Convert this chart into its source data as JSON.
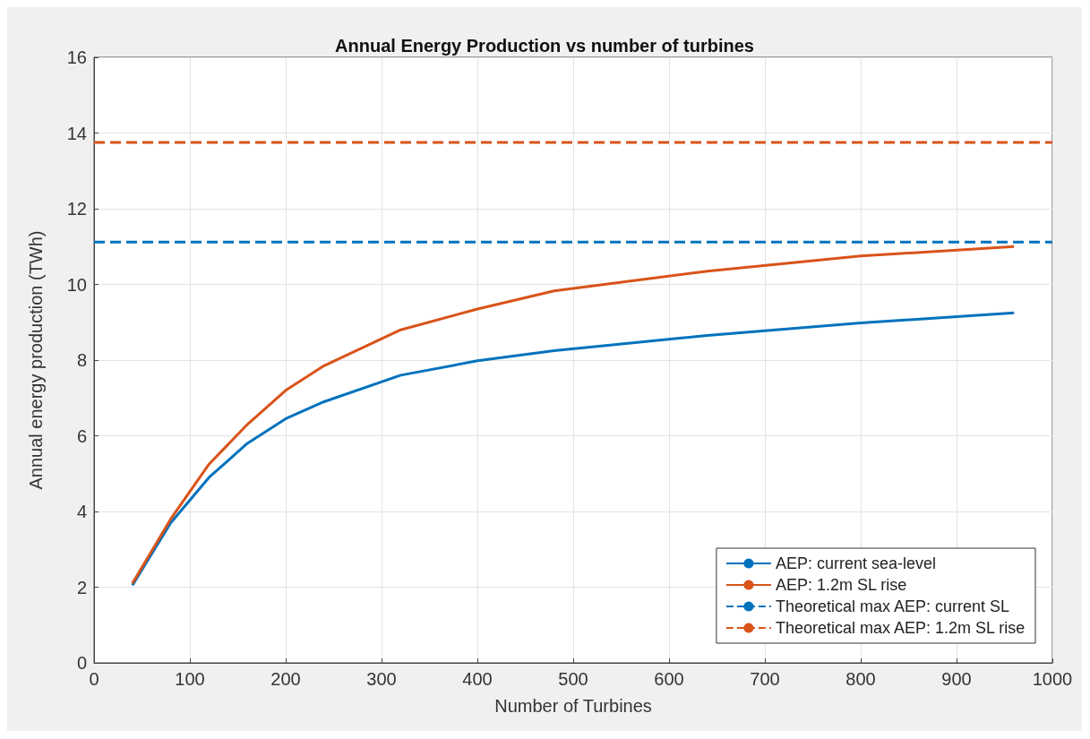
{
  "chart_data": {
    "type": "line",
    "title": "Annual Energy Production vs number of turbines",
    "xlabel": "Number of Turbines",
    "ylabel": "Annual energy production (TWh)",
    "xlim": [
      0,
      1000
    ],
    "xticks": [
      0,
      100,
      200,
      300,
      400,
      500,
      600,
      700,
      800,
      900,
      1000
    ],
    "ylim": [
      0,
      16
    ],
    "yticks": [
      0,
      2,
      4,
      6,
      8,
      10,
      12,
      14,
      16
    ],
    "grid": true,
    "legend": "bottom right",
    "marker": "none",
    "series": [
      {
        "name": "AEP: current sea-level",
        "color": "#0072bd",
        "line_style": "solid",
        "x": [
          40,
          80,
          120,
          160,
          200,
          240,
          320,
          400,
          480,
          640,
          800,
          960
        ],
        "values": [
          2.05,
          3.7,
          4.9,
          5.8,
          6.45,
          6.9,
          7.6,
          7.98,
          8.25,
          8.65,
          8.98,
          9.25
        ]
      },
      {
        "name": "AEP: 1.2m SL rise",
        "color": "#d95319",
        "line_style": "solid",
        "x": [
          40,
          80,
          120,
          160,
          200,
          240,
          320,
          400,
          480,
          640,
          800,
          960
        ],
        "values": [
          2.1,
          3.8,
          5.25,
          6.3,
          7.2,
          7.85,
          8.8,
          9.35,
          9.83,
          10.35,
          10.75,
          11.0
        ]
      },
      {
        "name": "Theoretical max AEP: current SL",
        "color": "#0072bd",
        "line_style": "dashed",
        "x": [
          0,
          1000
        ],
        "values": [
          11.12,
          11.12
        ]
      },
      {
        "name": "Theoretical max AEP: 1.2m SL rise",
        "color": "#d95319",
        "line_style": "dashed",
        "x": [
          0,
          1000
        ],
        "values": [
          13.75,
          13.75
        ]
      }
    ]
  }
}
